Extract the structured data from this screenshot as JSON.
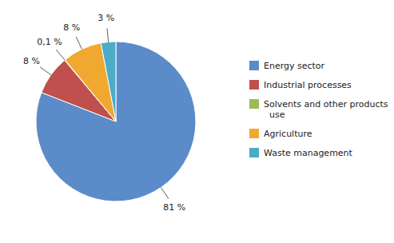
{
  "chart_data": {
    "type": "pie",
    "categories": [
      "Energy sector",
      "Industrial processes",
      "Solvents and other products\n  use",
      "Agriculture",
      "Waste management"
    ],
    "values": [
      81,
      8,
      0.1,
      8,
      3
    ],
    "value_labels": [
      "81 %",
      "8 %",
      "0,1 %",
      "8 %",
      "3 %"
    ],
    "colors": [
      "#5B8BC9",
      "#C0504D",
      "#9BBB59",
      "#F0A830",
      "#4BACC6"
    ],
    "data_labels": true,
    "legend": "right"
  }
}
